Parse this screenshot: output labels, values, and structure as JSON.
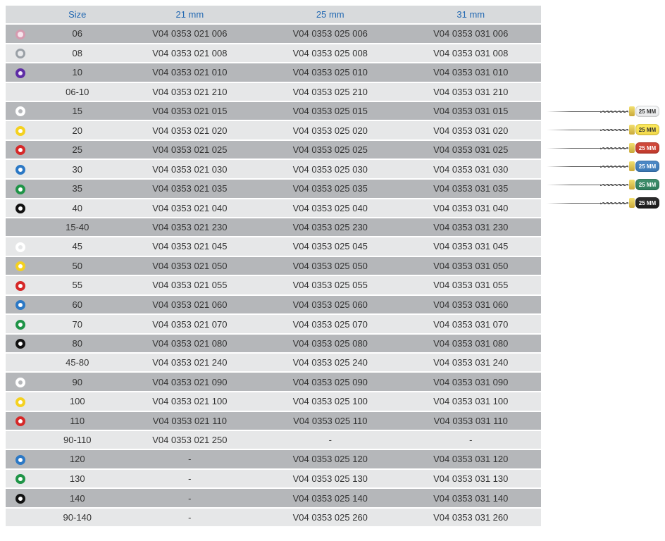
{
  "colors": {
    "header_bg": "#d8dadc",
    "header_text": "#2268b2",
    "row_dark": "#b5b7ba",
    "row_light": "#e6e7e8",
    "text": "#333333"
  },
  "table": {
    "columns": [
      "Size",
      "21 mm",
      "25 mm",
      "31 mm"
    ],
    "rows": [
      {
        "shade": "dark",
        "ring": {
          "border": "#d69bb0",
          "fill": "#f7e4ec",
          "bw": 3
        },
        "size": "06",
        "c21": "V04 0353 021 006",
        "c25": "V04 0353 025 006",
        "c31": "V04 0353 031 006"
      },
      {
        "shade": "light",
        "ring": {
          "border": "#9aa0a6",
          "fill": "#e9eaec",
          "bw": 3
        },
        "size": "08",
        "c21": "V04 0353 021 008",
        "c25": "V04 0353 025 008",
        "c31": "V04 0353 031 008"
      },
      {
        "shade": "dark",
        "ring": {
          "border": "#5e2ca5",
          "fill": "#efe6f8",
          "bw": 4
        },
        "size": "10",
        "c21": "V04 0353 021 010",
        "c25": "V04 0353 025 010",
        "c31": "V04 0353 031 010"
      },
      {
        "shade": "light",
        "ring": null,
        "size": "06-10",
        "c21": "V04 0353 021 210",
        "c25": "V04 0353 025 210",
        "c31": "V04 0353 031 210"
      },
      {
        "shade": "dark",
        "ring": {
          "border": "#ffffff",
          "fill": "#b5b7ba",
          "bw": 4
        },
        "size": "15",
        "c21": "V04 0353 021 015",
        "c25": "V04 0353 025 015",
        "c31": "V04 0353 031 015"
      },
      {
        "shade": "light",
        "ring": {
          "border": "#f4d120",
          "fill": "#ffffff",
          "bw": 4
        },
        "size": "20",
        "c21": "V04 0353 021 020",
        "c25": "V04 0353 025 020",
        "c31": "V04 0353 031 020"
      },
      {
        "shade": "dark",
        "ring": {
          "border": "#d62828",
          "fill": "#ffffff",
          "bw": 4
        },
        "size": "25",
        "c21": "V04 0353 021 025",
        "c25": "V04 0353 025 025",
        "c31": "V04 0353 031 025"
      },
      {
        "shade": "light",
        "ring": {
          "border": "#2b78c5",
          "fill": "#ffffff",
          "bw": 4
        },
        "size": "30",
        "c21": "V04 0353 021 030",
        "c25": "V04 0353 025 030",
        "c31": "V04 0353 031 030"
      },
      {
        "shade": "dark",
        "ring": {
          "border": "#1f9447",
          "fill": "#ffffff",
          "bw": 4
        },
        "size": "35",
        "c21": "V04 0353 021 035",
        "c25": "V04 0353 025 035",
        "c31": "V04 0353 031 035"
      },
      {
        "shade": "light",
        "ring": {
          "border": "#111111",
          "fill": "#ffffff",
          "bw": 4
        },
        "size": "40",
        "c21": "V04 0353 021 040",
        "c25": "V04 0353 025 040",
        "c31": "V04 0353 031 040"
      },
      {
        "shade": "dark",
        "ring": null,
        "size": "15-40",
        "c21": "V04 0353 021 230",
        "c25": "V04 0353 025 230",
        "c31": "V04 0353 031 230"
      },
      {
        "shade": "light",
        "ring": {
          "border": "#ffffff",
          "fill": "#e6e7e8",
          "bw": 4
        },
        "size": "45",
        "c21": "V04 0353 021 045",
        "c25": "V04 0353 025 045",
        "c31": "V04 0353 031 045"
      },
      {
        "shade": "dark",
        "ring": {
          "border": "#f4d120",
          "fill": "#ffffff",
          "bw": 4
        },
        "size": "50",
        "c21": "V04 0353 021 050",
        "c25": "V04 0353 025 050",
        "c31": "V04 0353 031 050"
      },
      {
        "shade": "light",
        "ring": {
          "border": "#d62828",
          "fill": "#ffffff",
          "bw": 4
        },
        "size": "55",
        "c21": "V04 0353 021 055",
        "c25": "V04 0353 025 055",
        "c31": "V04 0353 031 055"
      },
      {
        "shade": "dark",
        "ring": {
          "border": "#2b78c5",
          "fill": "#ffffff",
          "bw": 4
        },
        "size": "60",
        "c21": "V04 0353 021 060",
        "c25": "V04 0353 025 060",
        "c31": "V04 0353 031 060"
      },
      {
        "shade": "light",
        "ring": {
          "border": "#1f9447",
          "fill": "#ffffff",
          "bw": 4
        },
        "size": "70",
        "c21": "V04 0353 021 070",
        "c25": "V04 0353 025 070",
        "c31": "V04 0353 031 070"
      },
      {
        "shade": "dark",
        "ring": {
          "border": "#111111",
          "fill": "#ffffff",
          "bw": 4
        },
        "size": "80",
        "c21": "V04 0353 021 080",
        "c25": "V04 0353 025 080",
        "c31": "V04 0353 031 080"
      },
      {
        "shade": "light",
        "ring": null,
        "size": "45-80",
        "c21": "V04 0353 021 240",
        "c25": "V04 0353 025 240",
        "c31": "V04 0353 031 240"
      },
      {
        "shade": "dark",
        "ring": {
          "border": "#ffffff",
          "fill": "#b5b7ba",
          "bw": 4
        },
        "size": "90",
        "c21": "V04 0353 021 090",
        "c25": "V04 0353 025 090",
        "c31": "V04 0353 031 090"
      },
      {
        "shade": "light",
        "ring": {
          "border": "#f4d120",
          "fill": "#ffffff",
          "bw": 4
        },
        "size": "100",
        "c21": "V04 0353 021 100",
        "c25": "V04 0353 025 100",
        "c31": "V04 0353 031 100"
      },
      {
        "shade": "dark",
        "ring": {
          "border": "#d62828",
          "fill": "#ffffff",
          "bw": 4
        },
        "size": "110",
        "c21": "V04 0353 021 110",
        "c25": "V04 0353 025 110",
        "c31": "V04 0353 031 110"
      },
      {
        "shade": "light",
        "ring": null,
        "size": "90-110",
        "c21": "V04 0353 021 250",
        "c25": "-",
        "c31": "-"
      },
      {
        "shade": "dark",
        "ring": {
          "border": "#2b78c5",
          "fill": "#ffffff",
          "bw": 4
        },
        "size": "120",
        "c21": "-",
        "c25": "V04 0353 025 120",
        "c31": "V04 0353 031 120"
      },
      {
        "shade": "light",
        "ring": {
          "border": "#1f9447",
          "fill": "#ffffff",
          "bw": 4
        },
        "size": "130",
        "c21": "-",
        "c25": "V04 0353 025 130",
        "c31": "V04 0353 031 130"
      },
      {
        "shade": "dark",
        "ring": {
          "border": "#111111",
          "fill": "#ffffff",
          "bw": 4
        },
        "size": "140",
        "c21": "-",
        "c25": "V04 0353 025 140",
        "c31": "V04 0353 031 140"
      },
      {
        "shade": "light",
        "ring": null,
        "size": "90-140",
        "c21": "-",
        "c25": "V04 0353 025 260",
        "c31": "V04 0353 031 260"
      }
    ]
  },
  "files": [
    {
      "label": "25 MM",
      "bg": "#e6e7e8",
      "text": "#333333"
    },
    {
      "label": "25 MM",
      "bg": "#f2d84a",
      "text": "#333333"
    },
    {
      "label": "25 MM",
      "bg": "#c0392b",
      "text": "#ffffff"
    },
    {
      "label": "25 MM",
      "bg": "#3b78b5",
      "text": "#ffffff"
    },
    {
      "label": "25 MM",
      "bg": "#2e7d5b",
      "text": "#ffffff"
    },
    {
      "label": "25 MM",
      "bg": "#1b1b1b",
      "text": "#ffffff"
    }
  ]
}
